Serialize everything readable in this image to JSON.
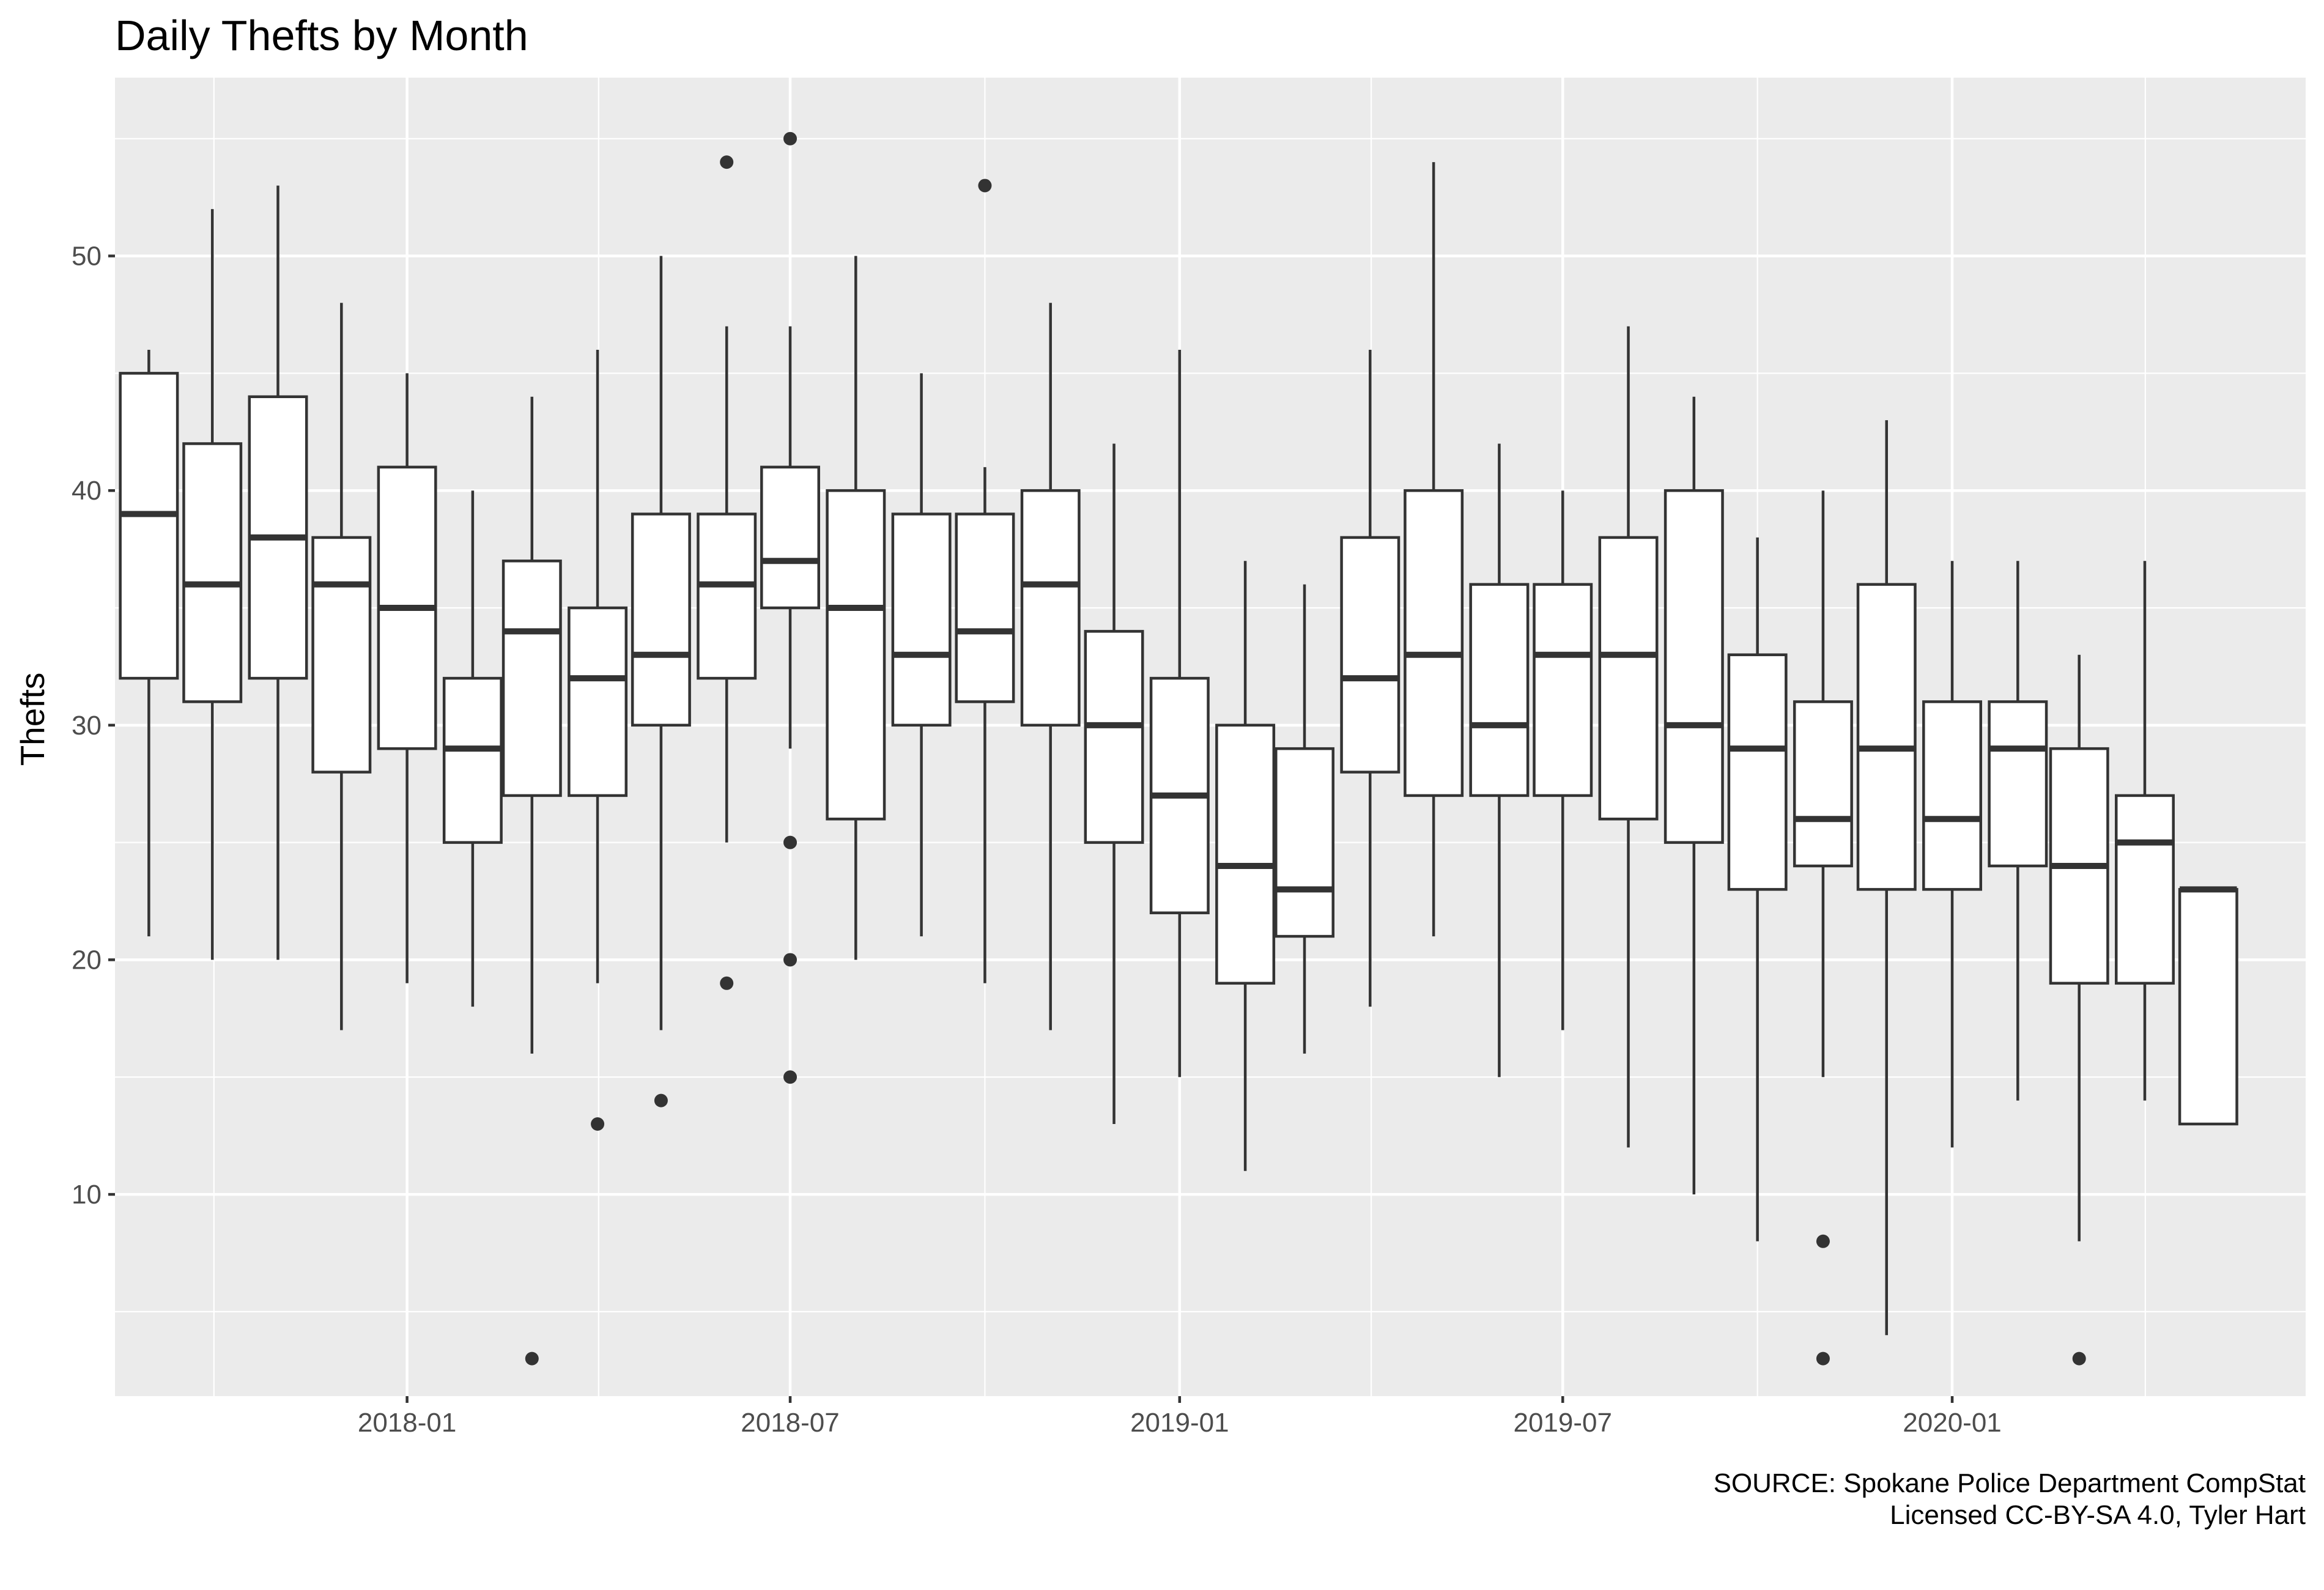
{
  "chart_data": {
    "type": "box",
    "title": "Daily Thefts by Month",
    "ylabel": "Thefts",
    "xlabel": "",
    "caption": [
      "SOURCE: Spokane Police Department CompStat",
      "Licensed CC-BY-SA 4.0, Tyler Hart"
    ],
    "x_axis": "date",
    "xlim": [
      "2017-08-16",
      "2020-06-16"
    ],
    "ylim": [
      1.4,
      57.6
    ],
    "y_ticks": [
      10,
      20,
      30,
      40,
      50
    ],
    "x_ticks": [
      {
        "date": "2018-01-01",
        "label": "2018-01"
      },
      {
        "date": "2018-07-01",
        "label": "2018-07"
      },
      {
        "date": "2019-01-01",
        "label": "2019-01"
      },
      {
        "date": "2019-07-01",
        "label": "2019-07"
      },
      {
        "date": "2020-01-01",
        "label": "2020-01"
      }
    ],
    "grid": true,
    "legend": "none",
    "boxes": [
      {
        "month": "2017-09-01",
        "min": 21,
        "q1": 32,
        "median": 39,
        "q3": 45,
        "max": 46,
        "outliers": []
      },
      {
        "month": "2017-10-01",
        "min": 20,
        "q1": 31,
        "median": 36,
        "q3": 42,
        "max": 52,
        "outliers": []
      },
      {
        "month": "2017-11-01",
        "min": 20,
        "q1": 32,
        "median": 38,
        "q3": 44,
        "max": 53,
        "outliers": []
      },
      {
        "month": "2017-12-01",
        "min": 17,
        "q1": 28,
        "median": 36,
        "q3": 38,
        "max": 48,
        "outliers": []
      },
      {
        "month": "2018-01-01",
        "min": 19,
        "q1": 29,
        "median": 35,
        "q3": 41,
        "max": 45,
        "outliers": []
      },
      {
        "month": "2018-02-01",
        "min": 18,
        "q1": 25,
        "median": 29,
        "q3": 32,
        "max": 40,
        "outliers": []
      },
      {
        "month": "2018-03-01",
        "min": 16,
        "q1": 27,
        "median": 34,
        "q3": 37,
        "max": 44,
        "outliers": [
          3
        ]
      },
      {
        "month": "2018-04-01",
        "min": 19,
        "q1": 27,
        "median": 32,
        "q3": 35,
        "max": 46,
        "outliers": [
          13
        ]
      },
      {
        "month": "2018-05-01",
        "min": 17,
        "q1": 30,
        "median": 33,
        "q3": 39,
        "max": 50,
        "outliers": [
          14
        ]
      },
      {
        "month": "2018-06-01",
        "min": 25,
        "q1": 32,
        "median": 36,
        "q3": 39,
        "max": 47,
        "outliers": [
          19,
          54
        ]
      },
      {
        "month": "2018-07-01",
        "min": 29,
        "q1": 35,
        "median": 37,
        "q3": 41,
        "max": 47,
        "outliers": [
          15,
          20,
          25,
          55
        ]
      },
      {
        "month": "2018-08-01",
        "min": 20,
        "q1": 26,
        "median": 35,
        "q3": 40,
        "max": 50,
        "outliers": []
      },
      {
        "month": "2018-09-01",
        "min": 21,
        "q1": 30,
        "median": 33,
        "q3": 39,
        "max": 45,
        "outliers": []
      },
      {
        "month": "2018-10-01",
        "min": 19,
        "q1": 31,
        "median": 34,
        "q3": 39,
        "max": 41,
        "outliers": [
          53
        ]
      },
      {
        "month": "2018-11-01",
        "min": 17,
        "q1": 30,
        "median": 36,
        "q3": 40,
        "max": 48,
        "outliers": []
      },
      {
        "month": "2018-12-01",
        "min": 13,
        "q1": 25,
        "median": 30,
        "q3": 34,
        "max": 42,
        "outliers": []
      },
      {
        "month": "2019-01-01",
        "min": 15,
        "q1": 22,
        "median": 27,
        "q3": 32,
        "max": 46,
        "outliers": []
      },
      {
        "month": "2019-02-01",
        "min": 11,
        "q1": 19,
        "median": 24,
        "q3": 30,
        "max": 37,
        "outliers": []
      },
      {
        "month": "2019-03-01",
        "min": 16,
        "q1": 21,
        "median": 23,
        "q3": 29,
        "max": 36,
        "outliers": []
      },
      {
        "month": "2019-04-01",
        "min": 18,
        "q1": 28,
        "median": 32,
        "q3": 38,
        "max": 46,
        "outliers": []
      },
      {
        "month": "2019-05-01",
        "min": 21,
        "q1": 27,
        "median": 33,
        "q3": 40,
        "max": 54,
        "outliers": []
      },
      {
        "month": "2019-06-01",
        "min": 15,
        "q1": 27,
        "median": 30,
        "q3": 36,
        "max": 42,
        "outliers": []
      },
      {
        "month": "2019-07-01",
        "min": 17,
        "q1": 27,
        "median": 33,
        "q3": 36,
        "max": 40,
        "outliers": []
      },
      {
        "month": "2019-08-01",
        "min": 12,
        "q1": 26,
        "median": 33,
        "q3": 38,
        "max": 47,
        "outliers": []
      },
      {
        "month": "2019-09-01",
        "min": 10,
        "q1": 25,
        "median": 30,
        "q3": 40,
        "max": 44,
        "outliers": []
      },
      {
        "month": "2019-10-01",
        "min": 8,
        "q1": 23,
        "median": 29,
        "q3": 33,
        "max": 38,
        "outliers": []
      },
      {
        "month": "2019-11-01",
        "min": 15,
        "q1": 24,
        "median": 26,
        "q3": 31,
        "max": 40,
        "outliers": [
          3,
          8
        ]
      },
      {
        "month": "2019-12-01",
        "min": 4,
        "q1": 23,
        "median": 29,
        "q3": 36,
        "max": 43,
        "outliers": []
      },
      {
        "month": "2020-01-01",
        "min": 12,
        "q1": 23,
        "median": 26,
        "q3": 31,
        "max": 37,
        "outliers": []
      },
      {
        "month": "2020-02-01",
        "min": 14,
        "q1": 24,
        "median": 29,
        "q3": 31,
        "max": 37,
        "outliers": []
      },
      {
        "month": "2020-03-01",
        "min": 8,
        "q1": 19,
        "median": 24,
        "q3": 29,
        "max": 33,
        "outliers": [
          3
        ]
      },
      {
        "month": "2020-04-01",
        "min": 14,
        "q1": 19,
        "median": 25,
        "q3": 27,
        "max": 37,
        "outliers": []
      },
      {
        "month": "2020-05-01",
        "min": 13,
        "q1": 13,
        "median": 23,
        "q3": 23,
        "max": 23,
        "outliers": []
      }
    ],
    "colors": {
      "panel": "#ebebeb",
      "grid": "#ffffff",
      "box_fill": "#ffffff",
      "box_line": "#333333",
      "tick_text": "#4d4d4d"
    }
  }
}
